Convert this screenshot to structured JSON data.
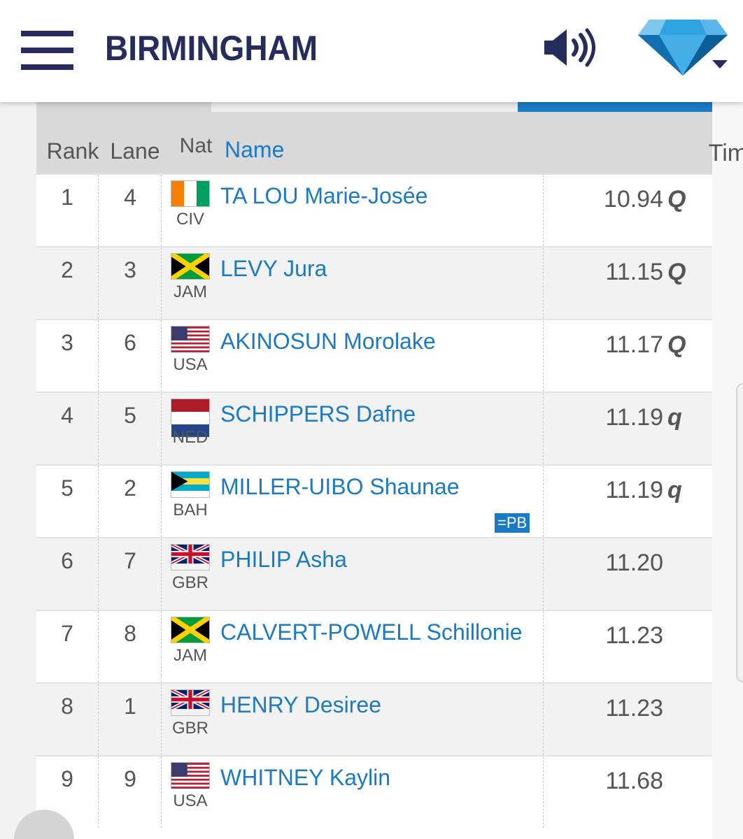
{
  "header": {
    "city": "BIRMINGHAM",
    "menu_icon": "hamburger-menu-icon",
    "speaker_icon": "speaker-volume-icon",
    "logo_icon": "diamond-league-logo-icon",
    "accent_color": "#262c5c"
  },
  "table": {
    "columns": {
      "rank": "Rank",
      "lane": "Lane",
      "nat": "Nat",
      "name": "Name",
      "time": "Time"
    },
    "rows": [
      {
        "rank": "1",
        "lane": "4",
        "nat": "CIV",
        "name": "TA LOU Marie-Josée",
        "time": "10.94",
        "qual": "Q"
      },
      {
        "rank": "2",
        "lane": "3",
        "nat": "JAM",
        "name": "LEVY Jura",
        "time": "11.15",
        "qual": "Q"
      },
      {
        "rank": "3",
        "lane": "6",
        "nat": "USA",
        "name": "AKINOSUN Morolake",
        "time": "11.17",
        "qual": "Q"
      },
      {
        "rank": "4",
        "lane": "5",
        "nat": "NED",
        "name": "SCHIPPERS Dafne",
        "time": "11.19",
        "qual": "q"
      },
      {
        "rank": "5",
        "lane": "2",
        "nat": "BAH",
        "name": "MILLER-UIBO Shaunae",
        "time": "11.19",
        "qual": "q",
        "badge": "=PB"
      },
      {
        "rank": "6",
        "lane": "7",
        "nat": "GBR",
        "name": "PHILIP Asha",
        "time": "11.20",
        "qual": ""
      },
      {
        "rank": "7",
        "lane": "8",
        "nat": "JAM",
        "name": "CALVERT-POWELL Schillonie",
        "time": "11.23",
        "qual": ""
      },
      {
        "rank": "8",
        "lane": "1",
        "nat": "GBR",
        "name": "HENRY Desiree",
        "time": "11.23",
        "qual": ""
      },
      {
        "rank": "9",
        "lane": "9",
        "nat": "USA",
        "name": "WHITNEY Kaylin",
        "time": "11.68",
        "qual": ""
      }
    ]
  },
  "colors": {
    "link": "#1a7ac4",
    "header_bg": "#d9d9d9",
    "row_alt": "#f2f2f2"
  }
}
